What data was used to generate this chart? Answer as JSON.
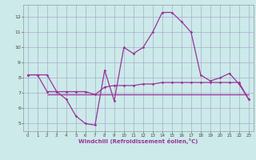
{
  "title": "",
  "xlabel": "Windchill (Refroidissement éolien,°C)",
  "ylabel": "",
  "bg_color": "#cceaea",
  "grid_color": "#aaaacc",
  "line_color": "#993399",
  "xlim": [
    -0.5,
    23.5
  ],
  "ylim": [
    4.5,
    12.8
  ],
  "yticks": [
    5,
    6,
    7,
    8,
    9,
    10,
    11,
    12
  ],
  "xticks": [
    0,
    1,
    2,
    3,
    4,
    5,
    6,
    7,
    8,
    9,
    10,
    11,
    12,
    13,
    14,
    15,
    16,
    17,
    18,
    19,
    20,
    21,
    22,
    23
  ],
  "series1_x": [
    0,
    1,
    2,
    3,
    4,
    5,
    6,
    7,
    8,
    9,
    10,
    11,
    12,
    13,
    14,
    15,
    16,
    17,
    18,
    19,
    20,
    21,
    22,
    23
  ],
  "series1_y": [
    8.2,
    8.2,
    8.2,
    7.1,
    6.6,
    5.5,
    5.0,
    4.9,
    8.5,
    6.5,
    10.0,
    9.6,
    10.0,
    11.0,
    12.3,
    12.3,
    11.7,
    11.0,
    8.2,
    7.8,
    8.0,
    8.3,
    7.6,
    6.6
  ],
  "series2_x": [
    0,
    1,
    2,
    3,
    4,
    5,
    6,
    7,
    8,
    9,
    10,
    11,
    12,
    13,
    14,
    15,
    16,
    17,
    18,
    19,
    20,
    21,
    22,
    23
  ],
  "series2_y": [
    8.2,
    8.2,
    7.1,
    7.1,
    7.1,
    7.1,
    7.1,
    6.9,
    7.4,
    7.5,
    7.5,
    7.5,
    7.6,
    7.6,
    7.7,
    7.7,
    7.7,
    7.7,
    7.7,
    7.7,
    7.7,
    7.7,
    7.7,
    6.6
  ],
  "hline_y": 6.9,
  "hline_x_start": 2,
  "hline_x_end": 23
}
